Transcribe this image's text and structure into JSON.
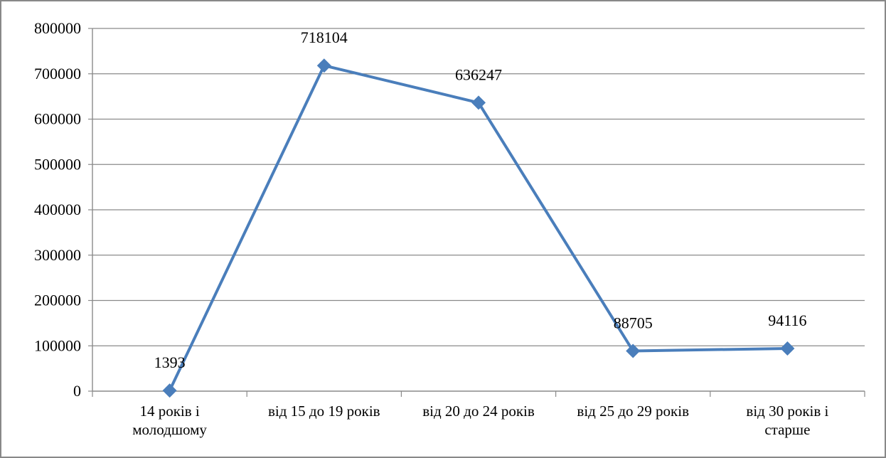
{
  "chart_data": {
    "type": "line",
    "title": "",
    "xlabel": "",
    "ylabel": "",
    "categories": [
      [
        "14 років і",
        "молодшому"
      ],
      [
        "від 15 до 19 років"
      ],
      [
        "від 20 до 24 років"
      ],
      [
        "від 25 до 29 років"
      ],
      [
        "від 30 років і",
        "старше"
      ]
    ],
    "values": [
      1393,
      718104,
      636247,
      88705,
      94116
    ],
    "data_labels": [
      "1393",
      "718104",
      "636247",
      "88705",
      "94116"
    ],
    "ylim": [
      0,
      800000
    ],
    "yticks": [
      0,
      100000,
      200000,
      300000,
      400000,
      500000,
      600000,
      700000,
      800000
    ],
    "ytick_labels": [
      "0",
      "100000",
      "200000",
      "300000",
      "400000",
      "500000",
      "600000",
      "700000",
      "800000"
    ],
    "grid": true,
    "legend": "none",
    "series_color": "#4a7ebb",
    "marker": "diamond"
  }
}
